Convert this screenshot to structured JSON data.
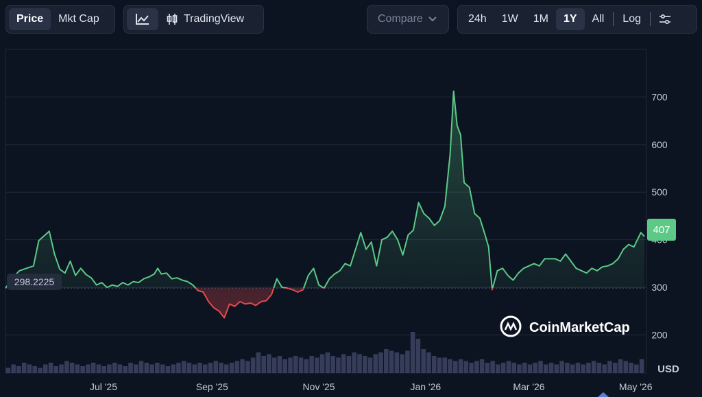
{
  "toolbar": {
    "metric_tabs": [
      "Price",
      "Mkt Cap"
    ],
    "tradingview_label": "TradingView",
    "compare_label": "Compare",
    "ranges": [
      "24h",
      "1W",
      "1M",
      "1Y",
      "All"
    ],
    "log_label": "Log",
    "active_metric": "Price",
    "active_range": "1Y"
  },
  "chart_data": {
    "type": "area",
    "currency": "USD",
    "watermark": "CoinMarketCap",
    "baseline_value": 298.2225,
    "baseline_label": "298.2225",
    "current_label": "407",
    "y_ticks": [
      "200",
      "300",
      "400",
      "500",
      "600",
      "700"
    ],
    "ylim": [
      120,
      800
    ],
    "x_ticks": [
      "Jul '25",
      "Sep '25",
      "Nov '25",
      "Jan '26",
      "Mar '26",
      "May '26"
    ],
    "x_tick_dates": [
      "2025-07-01",
      "2025-09-01",
      "2025-11-01",
      "2026-01-01",
      "2026-03-01",
      "2026-05-01"
    ],
    "xlim": [
      "2025-05-06",
      "2026-05-06"
    ],
    "colors": {
      "up": "#5cc987",
      "down": "#e5494d",
      "current_badge": "#5cc987",
      "volume": "#3a4160"
    },
    "series": [
      {
        "values": [
          [
            "2025-05-06",
            298
          ],
          [
            "2025-05-10",
            320
          ],
          [
            "2025-05-14",
            335
          ],
          [
            "2025-05-18",
            340
          ],
          [
            "2025-05-22",
            345
          ],
          [
            "2025-05-25",
            398
          ],
          [
            "2025-05-28",
            408
          ],
          [
            "2025-05-31",
            418
          ],
          [
            "2025-06-03",
            370
          ],
          [
            "2025-06-06",
            338
          ],
          [
            "2025-06-09",
            330
          ],
          [
            "2025-06-12",
            355
          ],
          [
            "2025-06-15",
            325
          ],
          [
            "2025-06-18",
            340
          ],
          [
            "2025-06-21",
            327
          ],
          [
            "2025-06-24",
            320
          ],
          [
            "2025-06-27",
            305
          ],
          [
            "2025-06-30",
            310
          ],
          [
            "2025-07-03",
            300
          ],
          [
            "2025-07-06",
            305
          ],
          [
            "2025-07-09",
            302
          ],
          [
            "2025-07-12",
            310
          ],
          [
            "2025-07-15",
            305
          ],
          [
            "2025-07-18",
            312
          ],
          [
            "2025-07-21",
            310
          ],
          [
            "2025-07-24",
            318
          ],
          [
            "2025-07-27",
            322
          ],
          [
            "2025-07-30",
            328
          ],
          [
            "2025-08-01",
            340
          ],
          [
            "2025-08-03",
            328
          ],
          [
            "2025-08-06",
            330
          ],
          [
            "2025-08-09",
            318
          ],
          [
            "2025-08-12",
            320
          ],
          [
            "2025-08-15",
            315
          ],
          [
            "2025-08-18",
            312
          ],
          [
            "2025-08-21",
            305
          ],
          [
            "2025-08-24",
            293
          ],
          [
            "2025-08-27",
            290
          ],
          [
            "2025-08-30",
            270
          ],
          [
            "2025-09-02",
            257
          ],
          [
            "2025-09-05",
            250
          ],
          [
            "2025-09-08",
            236
          ],
          [
            "2025-09-11",
            265
          ],
          [
            "2025-09-14",
            260
          ],
          [
            "2025-09-17",
            270
          ],
          [
            "2025-09-20",
            265
          ],
          [
            "2025-09-23",
            267
          ],
          [
            "2025-09-26",
            262
          ],
          [
            "2025-09-29",
            270
          ],
          [
            "2025-10-02",
            272
          ],
          [
            "2025-10-05",
            285
          ],
          [
            "2025-10-08",
            318
          ],
          [
            "2025-10-11",
            300
          ],
          [
            "2025-10-14",
            298
          ],
          [
            "2025-10-17",
            295
          ],
          [
            "2025-10-20",
            290
          ],
          [
            "2025-10-23",
            295
          ],
          [
            "2025-10-26",
            325
          ],
          [
            "2025-10-29",
            340
          ],
          [
            "2025-11-01",
            305
          ],
          [
            "2025-11-04",
            298
          ],
          [
            "2025-11-07",
            318
          ],
          [
            "2025-11-10",
            328
          ],
          [
            "2025-11-13",
            335
          ],
          [
            "2025-11-16",
            350
          ],
          [
            "2025-11-19",
            345
          ],
          [
            "2025-11-22",
            380
          ],
          [
            "2025-11-25",
            415
          ],
          [
            "2025-11-28",
            380
          ],
          [
            "2025-12-01",
            395
          ],
          [
            "2025-12-04",
            345
          ],
          [
            "2025-12-07",
            400
          ],
          [
            "2025-12-10",
            405
          ],
          [
            "2025-12-13",
            418
          ],
          [
            "2025-12-16",
            400
          ],
          [
            "2025-12-19",
            368
          ],
          [
            "2025-12-22",
            410
          ],
          [
            "2025-12-25",
            420
          ],
          [
            "2025-12-28",
            478
          ],
          [
            "2025-12-31",
            455
          ],
          [
            "2026-01-03",
            445
          ],
          [
            "2026-01-06",
            430
          ],
          [
            "2026-01-09",
            440
          ],
          [
            "2026-01-12",
            470
          ],
          [
            "2026-01-15",
            580
          ],
          [
            "2026-01-17",
            712
          ],
          [
            "2026-01-19",
            640
          ],
          [
            "2026-01-21",
            620
          ],
          [
            "2026-01-23",
            520
          ],
          [
            "2026-01-26",
            510
          ],
          [
            "2026-01-29",
            455
          ],
          [
            "2026-02-01",
            445
          ],
          [
            "2026-02-04",
            410
          ],
          [
            "2026-02-06",
            385
          ],
          [
            "2026-02-08",
            295
          ],
          [
            "2026-02-11",
            335
          ],
          [
            "2026-02-14",
            340
          ],
          [
            "2026-02-17",
            325
          ],
          [
            "2026-02-20",
            315
          ],
          [
            "2026-02-23",
            330
          ],
          [
            "2026-02-26",
            340
          ],
          [
            "2026-03-01",
            345
          ],
          [
            "2026-03-04",
            350
          ],
          [
            "2026-03-07",
            345
          ],
          [
            "2026-03-10",
            360
          ],
          [
            "2026-03-13",
            360
          ],
          [
            "2026-03-16",
            360
          ],
          [
            "2026-03-19",
            355
          ],
          [
            "2026-03-22",
            370
          ],
          [
            "2026-03-25",
            355
          ],
          [
            "2026-03-28",
            340
          ],
          [
            "2026-03-31",
            335
          ],
          [
            "2026-04-03",
            330
          ],
          [
            "2026-04-06",
            340
          ],
          [
            "2026-04-09",
            335
          ],
          [
            "2026-04-12",
            343
          ],
          [
            "2026-04-15",
            345
          ],
          [
            "2026-04-18",
            350
          ],
          [
            "2026-04-21",
            360
          ],
          [
            "2026-04-24",
            380
          ],
          [
            "2026-04-27",
            390
          ],
          [
            "2026-04-30",
            385
          ],
          [
            "2026-05-02",
            400
          ],
          [
            "2026-05-04",
            415
          ],
          [
            "2026-05-06",
            407
          ]
        ]
      }
    ],
    "volume": [
      3,
      5,
      4,
      6,
      5,
      4,
      3,
      5,
      6,
      4,
      5,
      7,
      6,
      5,
      4,
      5,
      6,
      5,
      4,
      5,
      6,
      5,
      4,
      6,
      5,
      7,
      6,
      5,
      6,
      5,
      4,
      5,
      6,
      7,
      6,
      5,
      6,
      5,
      6,
      7,
      6,
      5,
      6,
      7,
      8,
      7,
      9,
      12,
      10,
      11,
      9,
      10,
      8,
      9,
      10,
      9,
      8,
      10,
      9,
      11,
      12,
      10,
      9,
      11,
      10,
      12,
      11,
      10,
      9,
      11,
      12,
      14,
      13,
      12,
      11,
      13,
      24,
      20,
      14,
      12,
      10,
      9,
      9,
      8,
      7,
      8,
      7,
      6,
      7,
      8,
      6,
      7,
      5,
      6,
      7,
      6,
      5,
      6,
      5,
      6,
      7,
      5,
      6,
      5,
      7,
      6,
      5,
      6,
      5,
      6,
      7,
      6,
      5,
      7,
      6,
      8,
      7,
      6,
      5,
      8
    ]
  }
}
